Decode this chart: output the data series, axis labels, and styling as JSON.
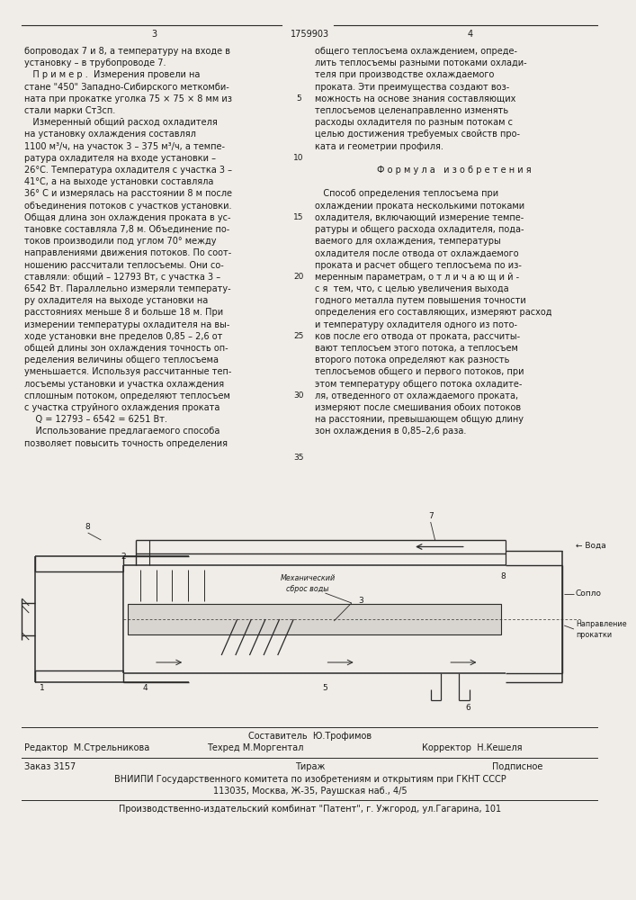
{
  "page_width": 7.07,
  "page_height": 10.0,
  "bg_color": "#f0ede8",
  "text_color": "#1a1a1a",
  "page_num_left": "3",
  "page_num_center": "1759903",
  "page_num_right": "4",
  "left_column_lines": [
    "бопроводах 7 и 8, а температуру на входе в",
    "установку – в трубопроводе 7.",
    "   П р и м е р .  Измерения провели на",
    "стане \"450\" Западно-Сибирского меткомби-",
    "ната при прокатке уголка 75 × 75 × 8 мм из",
    "стали марки Ст3сп.",
    "   Измеренный общий расход охладителя",
    "на установку охлаждения составлял",
    "1100 м³/ч, на участок 3 – 375 м³/ч, а темпе-",
    "ратура охладителя на входе установки –",
    "26°С. Температура охладителя с участка 3 –",
    "41°С, а на выходе установки составляла",
    "36° С и измерялась на расстоянии 8 м после",
    "объединения потоков с участков установки.",
    "Общая длина зон охлаждения проката в ус-",
    "тановке составляла 7,8 м. Объединение по-",
    "токов производили под углом 70° между",
    "направлениями движения потоков. По соот-",
    "ношению рассчитали теплосъемы. Они со-",
    "ставляли: общий – 12793 Вт, с участка 3 –",
    "6542 Вт. Параллельно измеряли температу-",
    "ру охладителя на выходе установки на",
    "расстояниях меньше 8 и больше 18 м. При",
    "измерении температуры охладителя на вы-",
    "ходе установки вне пределов 0,85 – 2,6 от",
    "общей длины зон охлаждения точность оп-",
    "ределения величины общего теплосъема",
    "уменьшается. Используя рассчитанные теп-",
    "лосъемы установки и участка охлаждения",
    "сплошным потоком, определяют теплосъем",
    "с участка струйного охлаждения проката",
    "    Q = 12793 – 6542 = 6251 Вт.",
    "    Использование предлагаемого способа",
    "позволяет повысить точность определения"
  ],
  "right_column_lines": [
    "общего теплосъема охлаждением, опреде-",
    "лить теплосъемы разными потоками охлади-",
    "теля при производстве охлаждаемого",
    "проката. Эти преимущества создают воз-",
    "можность на основе знания составляющих",
    "теплосъемов целенаправленно изменять",
    "расходы охладителя по разным потокам с",
    "целью достижения требуемых свойств про-",
    "ката и геометрии профиля.",
    "",
    "Ф о р м у л а   и з о б р е т е н и я",
    "",
    "   Способ определения теплосъема при",
    "охлаждении проката несколькими потоками",
    "охладителя, включающий измерение темпе-",
    "ратуры и общего расхода охладителя, пода-",
    "ваемого для охлаждения, температуры",
    "охладителя после отвода от охлаждаемого",
    "проката и расчет общего теплосъема по из-",
    "меренным параметрам, о т л и ч а ю щ и й -",
    "с я  тем, что, с целью увеличения выхода",
    "годного металла путем повышения точности",
    "определения его составляющих, измеряют расход",
    "и температуру охладителя одного из пото-",
    "ков после его отвода от проката, рассчиты-",
    "вают теплосъем этого потока, а теплосъем",
    "второго потока определяют как разность",
    "теплосъемов общего и первого потоков, при",
    "этом температуру общего потока охладите-",
    "ля, отведенного от охлаждаемого проката,",
    "измеряют после смешивания обоих потоков",
    "на расстоянии, превышающем общую длину",
    "зон охлаждения в 0,85–2,6 раза."
  ],
  "line_number": "35",
  "footer_composer": "Составитель  Ю.Трофимов",
  "footer_editor": "Редактор  М.Стрельникова",
  "footer_tech": "Техред М.Моргентал",
  "footer_corrector": "Корректор  Н.Кешеля",
  "footer_order": "Заказ 3157",
  "footer_circ": "Тираж",
  "footer_sub": "Подписное",
  "footer_vniiphi": "ВНИИПИ Государственного комитета по изобретениям и открытиям при ГКНТ СССР",
  "footer_addr": "113035, Москва, Ж-35, Раушская наб., 4/5",
  "footer_pub": "Производственно-издательский комбинат \"Патент\", г. Ужгород, ул.Гагарина, 101"
}
